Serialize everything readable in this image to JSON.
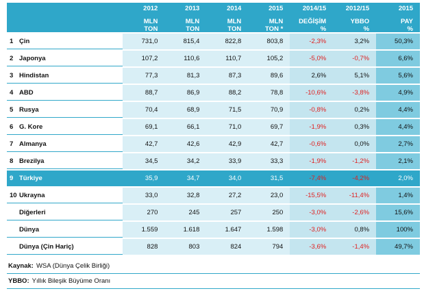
{
  "header": {
    "years": [
      "2012",
      "2013",
      "2014",
      "2015",
      "2014/15",
      "2012/15",
      "2015"
    ],
    "units_line1": [
      "MLN",
      "MLN",
      "MLN",
      "MLN",
      "DEĞİŞİM",
      "YBBO",
      "PAY"
    ],
    "units_line2": [
      "TON",
      "TON",
      "TON",
      "TON *",
      "%",
      "%",
      "%"
    ]
  },
  "rows": [
    {
      "rank": "1",
      "name": "Çin",
      "v2012": "731,0",
      "v2013": "815,4",
      "v2014": "822,8",
      "v2015": "803,8",
      "chg": "-2,3%",
      "ybbo": "3,2%",
      "pay": "50,3%"
    },
    {
      "rank": "2",
      "name": "Japonya",
      "v2012": "107,2",
      "v2013": "110,6",
      "v2014": "110,7",
      "v2015": "105,2",
      "chg": "-5,0%",
      "ybbo": "-0,7%",
      "pay": "6,6%"
    },
    {
      "rank": "3",
      "name": "Hindistan",
      "v2012": "77,3",
      "v2013": "81,3",
      "v2014": "87,3",
      "v2015": "89,6",
      "chg": "2,6%",
      "ybbo": "5,1%",
      "pay": "5,6%"
    },
    {
      "rank": "4",
      "name": "ABD",
      "v2012": "88,7",
      "v2013": "86,9",
      "v2014": "88,2",
      "v2015": "78,8",
      "chg": "-10,6%",
      "ybbo": "-3,8%",
      "pay": "4,9%"
    },
    {
      "rank": "5",
      "name": "Rusya",
      "v2012": "70,4",
      "v2013": "68,9",
      "v2014": "71,5",
      "v2015": "70,9",
      "chg": "-0,8%",
      "ybbo": "0,2%",
      "pay": "4,4%"
    },
    {
      "rank": "6",
      "name": "G. Kore",
      "v2012": "69,1",
      "v2013": "66,1",
      "v2014": "71,0",
      "v2015": "69,7",
      "chg": "-1,9%",
      "ybbo": "0,3%",
      "pay": "4,4%"
    },
    {
      "rank": "7",
      "name": "Almanya",
      "v2012": "42,7",
      "v2013": "42,6",
      "v2014": "42,9",
      "v2015": "42,7",
      "chg": "-0,6%",
      "ybbo": "0,0%",
      "pay": "2,7%"
    },
    {
      "rank": "8",
      "name": "Brezilya",
      "v2012": "34,5",
      "v2013": "34,2",
      "v2014": "33,9",
      "v2015": "33,3",
      "chg": "-1,9%",
      "ybbo": "-1,2%",
      "pay": "2,1%"
    },
    {
      "rank": "9",
      "name": "Türkiye",
      "v2012": "35,9",
      "v2013": "34,7",
      "v2014": "34,0",
      "v2015": "31,5",
      "chg": "-7,4%",
      "ybbo": "-4,2%",
      "pay": "2,0%"
    },
    {
      "rank": "10",
      "name": "Ukrayna",
      "v2012": "33,0",
      "v2013": "32,8",
      "v2014": "27,2",
      "v2015": "23,0",
      "chg": "-15,5%",
      "ybbo": "-11,4%",
      "pay": "1,4%"
    },
    {
      "rank": "",
      "name": "Diğerleri",
      "v2012": "270",
      "v2013": "245",
      "v2014": "257",
      "v2015": "250",
      "chg": "-3,0%",
      "ybbo": "-2,6%",
      "pay": "15,6%"
    },
    {
      "rank": "",
      "name": "Dünya",
      "v2012": "1.559",
      "v2013": "1.618",
      "v2014": "1.647",
      "v2015": "1.598",
      "chg": "-3,0%",
      "ybbo": "0,8%",
      "pay": "100%"
    },
    {
      "rank": "",
      "name": "Dünya (Çin Hariç)",
      "v2012": "828",
      "v2013": "803",
      "v2014": "824",
      "v2015": "794",
      "chg": "-3,6%",
      "ybbo": "-1,4%",
      "pay": "49,7%"
    }
  ],
  "highlight_row": 8,
  "footnotes": [
    {
      "label": "Kaynak:",
      "text": "WSA (Dünya Çelik Birliği)"
    },
    {
      "label": "YBBO:",
      "text": "Yıllık Bileşik Büyüme Oranı"
    }
  ],
  "colors": {
    "header": "#2fa7c9",
    "light": "#d9eff6",
    "mid": "#c4e5ef",
    "pay": "#7fcbe0",
    "negative": "#e02020"
  }
}
